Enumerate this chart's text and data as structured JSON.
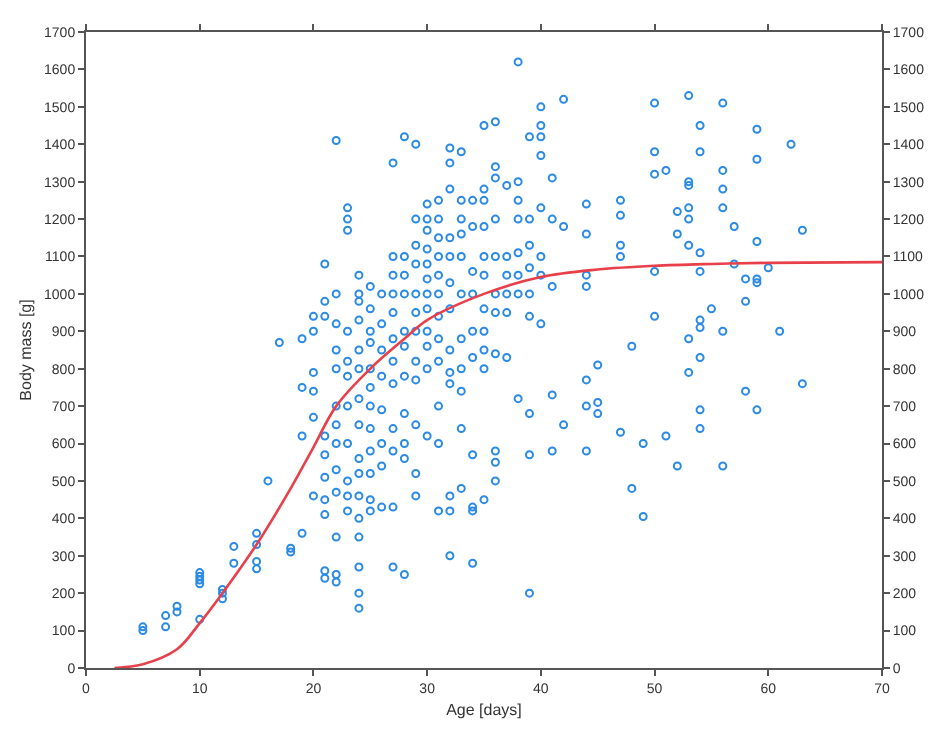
{
  "chart_data": {
    "type": "scatter",
    "xlabel": "Age [days]",
    "ylabel": "Body mass [g]",
    "xlim": [
      0,
      70
    ],
    "xticks": [
      0,
      10,
      20,
      30,
      40,
      50,
      60,
      70
    ],
    "ylim": [
      0,
      1700
    ],
    "yticks": [
      0,
      100,
      200,
      300,
      400,
      500,
      600,
      700,
      800,
      900,
      1000,
      1100,
      1200,
      1300,
      1400,
      1500,
      1600,
      1700
    ],
    "y2lim": [
      0,
      1700
    ],
    "y2ticks": [
      0,
      100,
      200,
      300,
      400,
      500,
      600,
      700,
      800,
      900,
      1000,
      1100,
      1200,
      1300,
      1400,
      1500,
      1600,
      1700
    ],
    "marker": "circle",
    "series": [
      {
        "color": "#2a8ae6",
        "x": [
          5,
          5,
          7,
          7,
          8,
          8,
          10,
          10,
          10,
          10,
          10,
          12,
          12,
          12,
          13,
          13,
          15,
          15,
          15,
          15,
          16,
          17,
          18,
          18,
          19,
          19,
          19,
          19,
          20,
          20,
          20,
          20,
          20,
          20,
          21,
          21,
          21,
          21,
          21,
          21,
          21,
          21,
          21,
          21,
          22,
          22,
          22,
          22,
          22,
          22,
          22,
          22,
          22,
          22,
          22,
          22,
          22,
          23,
          23,
          23,
          23,
          23,
          23,
          23,
          23,
          23,
          23,
          23,
          24,
          24,
          24,
          24,
          24,
          24,
          24,
          24,
          24,
          24,
          24,
          24,
          24,
          24,
          24,
          24,
          25,
          25,
          25,
          25,
          25,
          25,
          25,
          25,
          25,
          25,
          25,
          25,
          26,
          26,
          26,
          26,
          26,
          26,
          26,
          26,
          27,
          27,
          27,
          27,
          27,
          27,
          27,
          27,
          27,
          27,
          27,
          27,
          28,
          28,
          28,
          28,
          28,
          28,
          28,
          28,
          28,
          28,
          28,
          29,
          29,
          29,
          29,
          29,
          29,
          29,
          29,
          29,
          29,
          29,
          29,
          30,
          30,
          30,
          30,
          30,
          30,
          30,
          30,
          30,
          30,
          30,
          30,
          31,
          31,
          31,
          31,
          31,
          31,
          31,
          31,
          31,
          31,
          31,
          31,
          32,
          32,
          32,
          32,
          32,
          32,
          32,
          32,
          32,
          32,
          32,
          32,
          32,
          33,
          33,
          33,
          33,
          33,
          33,
          33,
          33,
          33,
          33,
          33,
          34,
          34,
          34,
          34,
          34,
          34,
          34,
          34,
          34,
          34,
          35,
          35,
          35,
          35,
          35,
          35,
          35,
          35,
          35,
          35,
          35,
          36,
          36,
          36,
          36,
          36,
          36,
          36,
          36,
          36,
          36,
          36,
          37,
          37,
          37,
          37,
          37,
          37,
          38,
          38,
          38,
          38,
          38,
          38,
          38,
          38,
          39,
          39,
          39,
          39,
          39,
          39,
          39,
          39,
          39,
          40,
          40,
          40,
          40,
          40,
          40,
          40,
          40,
          41,
          41,
          41,
          41,
          41,
          42,
          42,
          42,
          44,
          44,
          44,
          44,
          44,
          44,
          44,
          45,
          45,
          45,
          47,
          47,
          47,
          47,
          47,
          48,
          48,
          49,
          49,
          50,
          50,
          50,
          50,
          50,
          51,
          51,
          52,
          52,
          52,
          53,
          53,
          53,
          53,
          53,
          53,
          53,
          53,
          54,
          54,
          54,
          54,
          54,
          54,
          54,
          54,
          54,
          55,
          56,
          56,
          56,
          56,
          56,
          56,
          57,
          57,
          58,
          58,
          58,
          59,
          59,
          59,
          59,
          59,
          59,
          60,
          61,
          62,
          63,
          63
        ],
        "values": [
          100,
          110,
          110,
          140,
          150,
          165,
          130,
          225,
          235,
          245,
          255,
          185,
          200,
          210,
          280,
          325,
          265,
          285,
          330,
          360,
          500,
          870,
          310,
          320,
          360,
          620,
          750,
          880,
          460,
          670,
          740,
          790,
          900,
          940,
          240,
          260,
          410,
          450,
          510,
          570,
          620,
          980,
          1080,
          940,
          230,
          250,
          350,
          470,
          530,
          600,
          650,
          700,
          800,
          850,
          920,
          1000,
          1410,
          1230,
          1200,
          1170,
          900,
          820,
          780,
          700,
          600,
          500,
          460,
          420,
          1050,
          1000,
          980,
          930,
          850,
          800,
          720,
          650,
          560,
          520,
          460,
          400,
          350,
          270,
          200,
          160,
          1020,
          960,
          900,
          870,
          800,
          750,
          700,
          640,
          580,
          520,
          450,
          420,
          1000,
          920,
          850,
          780,
          690,
          600,
          540,
          430,
          1350,
          1100,
          1050,
          1000,
          950,
          880,
          820,
          760,
          640,
          580,
          430,
          270,
          1420,
          1100,
          1050,
          1000,
          900,
          860,
          780,
          680,
          560,
          600,
          250,
          1400,
          1200,
          1130,
          1080,
          1000,
          950,
          900,
          820,
          770,
          650,
          520,
          460,
          1240,
          1200,
          1170,
          1120,
          1080,
          1040,
          1000,
          960,
          900,
          860,
          800,
          620,
          1250,
          1200,
          1150,
          1100,
          1050,
          1000,
          940,
          880,
          820,
          700,
          600,
          420,
          1390,
          1350,
          1280,
          1150,
          1100,
          1030,
          960,
          850,
          790,
          760,
          460,
          420,
          300,
          1380,
          1250,
          1200,
          1160,
          1100,
          1000,
          880,
          800,
          740,
          640,
          480,
          1250,
          1180,
          1060,
          1000,
          900,
          830,
          570,
          430,
          420,
          280,
          1450,
          1280,
          1250,
          1180,
          1100,
          1050,
          960,
          900,
          850,
          800,
          450,
          1460,
          1340,
          1310,
          1200,
          1100,
          1000,
          950,
          840,
          580,
          550,
          500,
          1290,
          1100,
          1050,
          1000,
          950,
          830,
          1620,
          1300,
          1250,
          1200,
          1110,
          1050,
          1000,
          720,
          1420,
          1200,
          1130,
          1070,
          1000,
          940,
          680,
          570,
          200,
          1450,
          1500,
          1420,
          1370,
          1230,
          1100,
          1050,
          920,
          1310,
          1200,
          1020,
          730,
          580,
          1520,
          1180,
          650,
          1240,
          1160,
          1050,
          1020,
          770,
          700,
          580,
          810,
          710,
          680,
          1250,
          1210,
          1130,
          1100,
          630,
          860,
          480,
          600,
          405,
          1510,
          1380,
          1320,
          1060,
          940,
          1330,
          620,
          1220,
          1160,
          540,
          1530,
          1300,
          1290,
          1230,
          1200,
          1130,
          880,
          790,
          1450,
          1380,
          1110,
          1060,
          930,
          910,
          830,
          690,
          640,
          960,
          1510,
          1330,
          1280,
          1230,
          900,
          540,
          1180,
          1080,
          1040,
          980,
          740,
          1440,
          1360,
          1140,
          1030,
          1040,
          690,
          1070,
          900,
          1400,
          1170,
          760
        ]
      },
      {
        "type": "line",
        "color": "#e8404a",
        "marker": "none",
        "line_style": "solid",
        "x": [
          2.5,
          5,
          8,
          10,
          12,
          15,
          18,
          20,
          22,
          25,
          28,
          30,
          35,
          40,
          45,
          50,
          55,
          60,
          70
        ],
        "values": [
          0,
          10,
          50,
          120,
          200,
          330,
          480,
          590,
          700,
          800,
          880,
          930,
          1000,
          1045,
          1065,
          1075,
          1080,
          1083,
          1085
        ]
      }
    ]
  }
}
